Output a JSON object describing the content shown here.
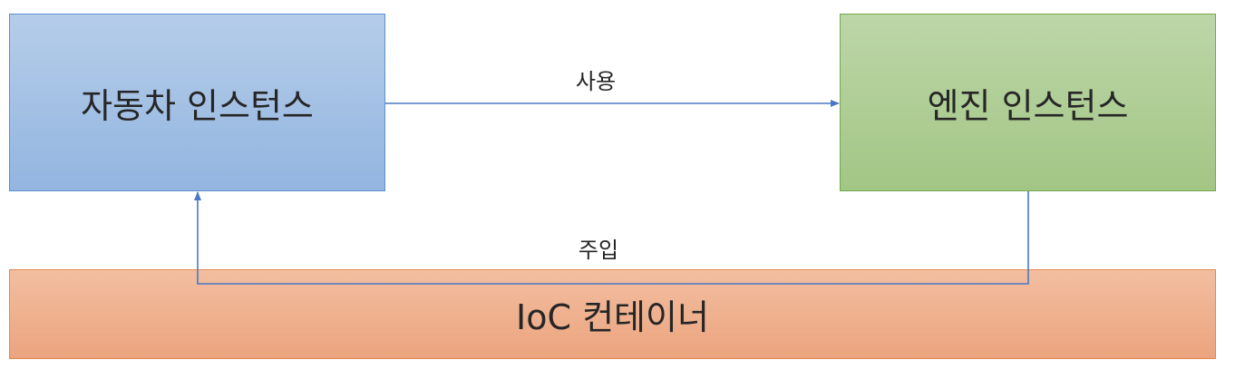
{
  "diagram": {
    "nodes": {
      "car_instance": {
        "label": "자동차 인스턴스"
      },
      "engine_instance": {
        "label": "엔진 인스턴스"
      },
      "ioc_container": {
        "label": "IoC 컨테이너"
      }
    },
    "edges": {
      "use": {
        "label": "사용",
        "from": "car_instance",
        "to": "engine_instance"
      },
      "inject": {
        "label": "주입",
        "from": "engine_instance",
        "to": "car_instance",
        "via": "ioc_container"
      }
    },
    "colors": {
      "car_fill": "#a4c1e4",
      "car_border": "#5b8fd3",
      "engine_fill": "#afce95",
      "engine_border": "#72a94b",
      "ioc_fill": "#efb08e",
      "ioc_border": "#e2874f",
      "connector": "#4a78c2"
    }
  }
}
